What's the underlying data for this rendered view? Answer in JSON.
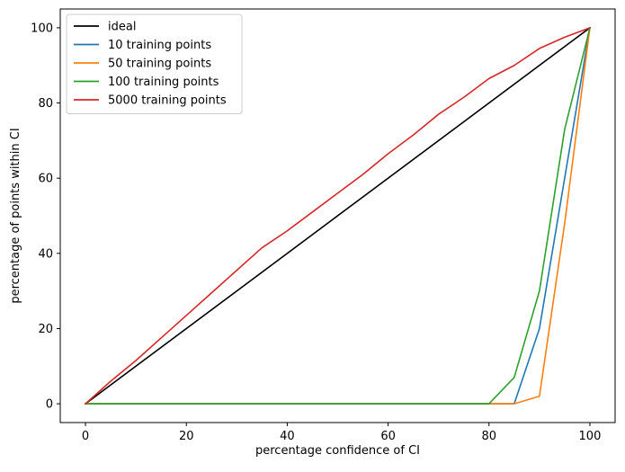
{
  "chart_data": {
    "type": "line",
    "title": "",
    "xlabel": "percentage confidence of CI",
    "ylabel": "percentage of points within CI",
    "xlim": [
      -5,
      105
    ],
    "ylim": [
      -5,
      105
    ],
    "xticks": [
      0,
      20,
      40,
      60,
      80,
      100
    ],
    "yticks": [
      0,
      20,
      40,
      60,
      80,
      100
    ],
    "grid": false,
    "legend_position": "top-left",
    "series": [
      {
        "name": "ideal",
        "color": "#000000",
        "points": [
          [
            0,
            0
          ],
          [
            100,
            100
          ]
        ]
      },
      {
        "name": "10 training points",
        "color": "#1f77b4",
        "points": [
          [
            0,
            0
          ],
          [
            5,
            0
          ],
          [
            10,
            0
          ],
          [
            15,
            0
          ],
          [
            20,
            0
          ],
          [
            25,
            0
          ],
          [
            30,
            0
          ],
          [
            35,
            0
          ],
          [
            40,
            0
          ],
          [
            45,
            0
          ],
          [
            50,
            0
          ],
          [
            55,
            0
          ],
          [
            60,
            0
          ],
          [
            65,
            0
          ],
          [
            70,
            0
          ],
          [
            75,
            0
          ],
          [
            80,
            0
          ],
          [
            85,
            0
          ],
          [
            90,
            20
          ],
          [
            95,
            60
          ],
          [
            100,
            100
          ]
        ]
      },
      {
        "name": "50 training points",
        "color": "#ff7f0e",
        "points": [
          [
            0,
            0
          ],
          [
            5,
            0
          ],
          [
            10,
            0
          ],
          [
            15,
            0
          ],
          [
            20,
            0
          ],
          [
            25,
            0
          ],
          [
            30,
            0
          ],
          [
            35,
            0
          ],
          [
            40,
            0
          ],
          [
            45,
            0
          ],
          [
            50,
            0
          ],
          [
            55,
            0
          ],
          [
            60,
            0
          ],
          [
            65,
            0
          ],
          [
            70,
            0
          ],
          [
            75,
            0
          ],
          [
            80,
            0
          ],
          [
            85,
            0
          ],
          [
            90,
            2
          ],
          [
            95,
            48
          ],
          [
            100,
            100
          ]
        ]
      },
      {
        "name": "100 training points",
        "color": "#2ca02c",
        "points": [
          [
            0,
            0
          ],
          [
            5,
            0
          ],
          [
            10,
            0
          ],
          [
            15,
            0
          ],
          [
            20,
            0
          ],
          [
            25,
            0
          ],
          [
            30,
            0
          ],
          [
            35,
            0
          ],
          [
            40,
            0
          ],
          [
            45,
            0
          ],
          [
            50,
            0
          ],
          [
            55,
            0
          ],
          [
            60,
            0
          ],
          [
            65,
            0
          ],
          [
            70,
            0
          ],
          [
            75,
            0
          ],
          [
            80,
            0
          ],
          [
            85,
            7
          ],
          [
            90,
            30
          ],
          [
            95,
            73
          ],
          [
            100,
            100
          ]
        ]
      },
      {
        "name": "5000 training points",
        "color": "#d62728",
        "points": [
          [
            0,
            0
          ],
          [
            5,
            6
          ],
          [
            10,
            11.5
          ],
          [
            15,
            17.5
          ],
          [
            20,
            23.5
          ],
          [
            25,
            29.5
          ],
          [
            30,
            35.5
          ],
          [
            35,
            41.5
          ],
          [
            40,
            46
          ],
          [
            45,
            51
          ],
          [
            50,
            56
          ],
          [
            55,
            61
          ],
          [
            60,
            66.5
          ],
          [
            65,
            71.5
          ],
          [
            70,
            77
          ],
          [
            75,
            81.5
          ],
          [
            80,
            86.5
          ],
          [
            85,
            90
          ],
          [
            90,
            94.5
          ],
          [
            95,
            97.5
          ],
          [
            100,
            100
          ]
        ]
      }
    ]
  }
}
